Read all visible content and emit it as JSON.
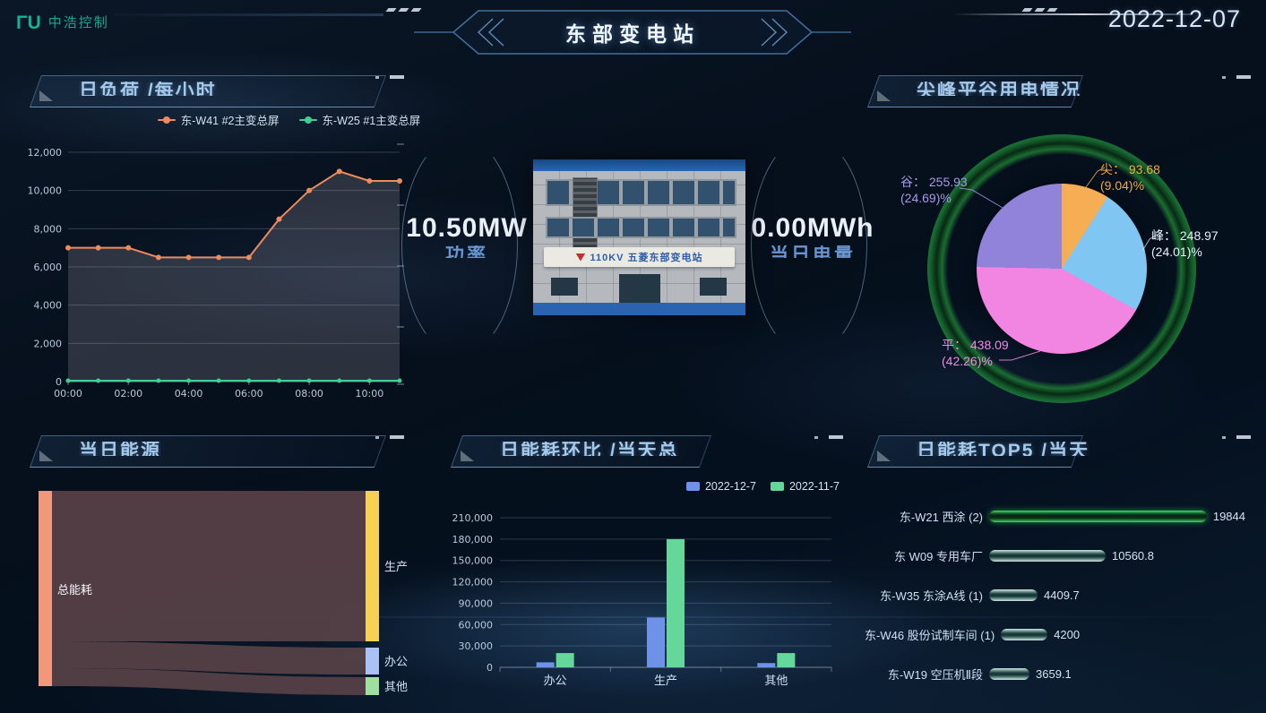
{
  "header": {
    "logo_mark": "ΓU",
    "logo_text": "中浩控制",
    "title": "东部变电站",
    "date": "2022-12-07"
  },
  "center": {
    "power_value": "10.50MW",
    "power_label": "功率",
    "energy_value": "0.00MWh",
    "energy_label": "当日电量",
    "photo_sign": "110KV 五菱东部变电站"
  },
  "panels": {
    "load": {
      "title": "日负荷 /每小时"
    },
    "pie": {
      "title": "尖峰平谷用电情况"
    },
    "sankey": {
      "title": "当日能源"
    },
    "compare": {
      "title": "日能耗环比 /当天总"
    },
    "top5": {
      "title": "日能耗TOP5 /当天"
    }
  },
  "colors": {
    "accent_teal": "#14b392",
    "panel_title": "#a6c9e9",
    "axis_label": "#b9c8da"
  },
  "chart_data": [
    {
      "id": "load_line",
      "type": "line",
      "title": "日负荷 /每小时",
      "x": [
        "00:00",
        "01:00",
        "02:00",
        "03:00",
        "04:00",
        "05:00",
        "06:00",
        "07:00",
        "08:00",
        "09:00",
        "10:00",
        "11:00"
      ],
      "x_tick_labels": [
        "00:00",
        "02:00",
        "04:00",
        "06:00",
        "08:00",
        "10:00"
      ],
      "series": [
        {
          "name": "东-W41 #2主变总屏",
          "color": "#ed8a5e",
          "values": [
            7000,
            7000,
            7000,
            6500,
            6500,
            6500,
            6500,
            8500,
            10000,
            11000,
            10500,
            10500
          ]
        },
        {
          "name": "东-W25 #1主变总屏",
          "color": "#41cf96",
          "values": [
            0,
            0,
            0,
            0,
            0,
            0,
            0,
            0,
            0,
            0,
            0,
            0
          ]
        }
      ],
      "ylim": [
        0,
        12000
      ],
      "y_ticks": [
        "0",
        "2,000",
        "4,000",
        "6,000",
        "8,000",
        "10,000",
        "12,000"
      ],
      "grid": true,
      "legend_position": "top"
    },
    {
      "id": "peak_pie",
      "type": "pie",
      "title": "尖峰平谷用电情况",
      "slices": [
        {
          "name": "尖",
          "value": "93.68",
          "pct": 9.04,
          "color": "#f6ae55",
          "label_color": "#f0a948"
        },
        {
          "name": "峰",
          "value": "248.97",
          "pct": 24.01,
          "color": "#7fc6f2",
          "label_color": "#e8f0fa"
        },
        {
          "name": "平",
          "value": "438.09",
          "pct": 42.26,
          "color": "#f285e2",
          "label_color": "#f08be4"
        },
        {
          "name": "谷",
          "value": "255.93",
          "pct": 24.69,
          "color": "#9183d9",
          "label_color": "#a79ae6"
        }
      ]
    },
    {
      "id": "energy_sankey",
      "type": "sankey",
      "title": "当日能源",
      "source": {
        "name": "总能耗",
        "color": "#f2987a"
      },
      "targets": [
        {
          "name": "生产",
          "color": "#f7d154",
          "share": 0.77
        },
        {
          "name": "办公",
          "color": "#a9c1f5",
          "share": 0.14
        },
        {
          "name": "其他",
          "color": "#9fdfa0",
          "share": 0.09
        }
      ],
      "flow_color": "rgba(90,66,72,0.9)"
    },
    {
      "id": "compare_bar",
      "type": "bar",
      "title": "日能耗环比 /当天总",
      "categories": [
        "办公",
        "生产",
        "其他"
      ],
      "series": [
        {
          "name": "2022-12-7",
          "color": "#6d92e8",
          "values": [
            7000,
            70000,
            6000
          ]
        },
        {
          "name": "2022-11-7",
          "color": "#66d79b",
          "values": [
            20000,
            180000,
            20000
          ]
        }
      ],
      "ylim": [
        0,
        210000
      ],
      "y_ticks": [
        "0",
        "30,000",
        "60,000",
        "90,000",
        "120,000",
        "150,000",
        "180,000",
        "210,000"
      ],
      "grid": true,
      "legend_position": "top-right"
    },
    {
      "id": "top5_bar",
      "type": "hbar",
      "title": "日能耗TOP5 /当天",
      "rows": [
        {
          "label": "东-W21 西涂 (2)",
          "value": "19844",
          "num": 19844,
          "highlight": true
        },
        {
          "label": "东 W09 专用车厂",
          "value": "10560.8",
          "num": 10560.8,
          "highlight": false
        },
        {
          "label": "东-W35 东涂A线 (1)",
          "value": "4409.7",
          "num": 4409.7,
          "highlight": false
        },
        {
          "label": "东-W46 股份试制车间 (1)",
          "value": "4200",
          "num": 4200,
          "highlight": false
        },
        {
          "label": "东-W19 空压机Ⅱ段",
          "value": "3659.1",
          "num": 3659.1,
          "highlight": false
        }
      ],
      "max": 19844
    }
  ]
}
